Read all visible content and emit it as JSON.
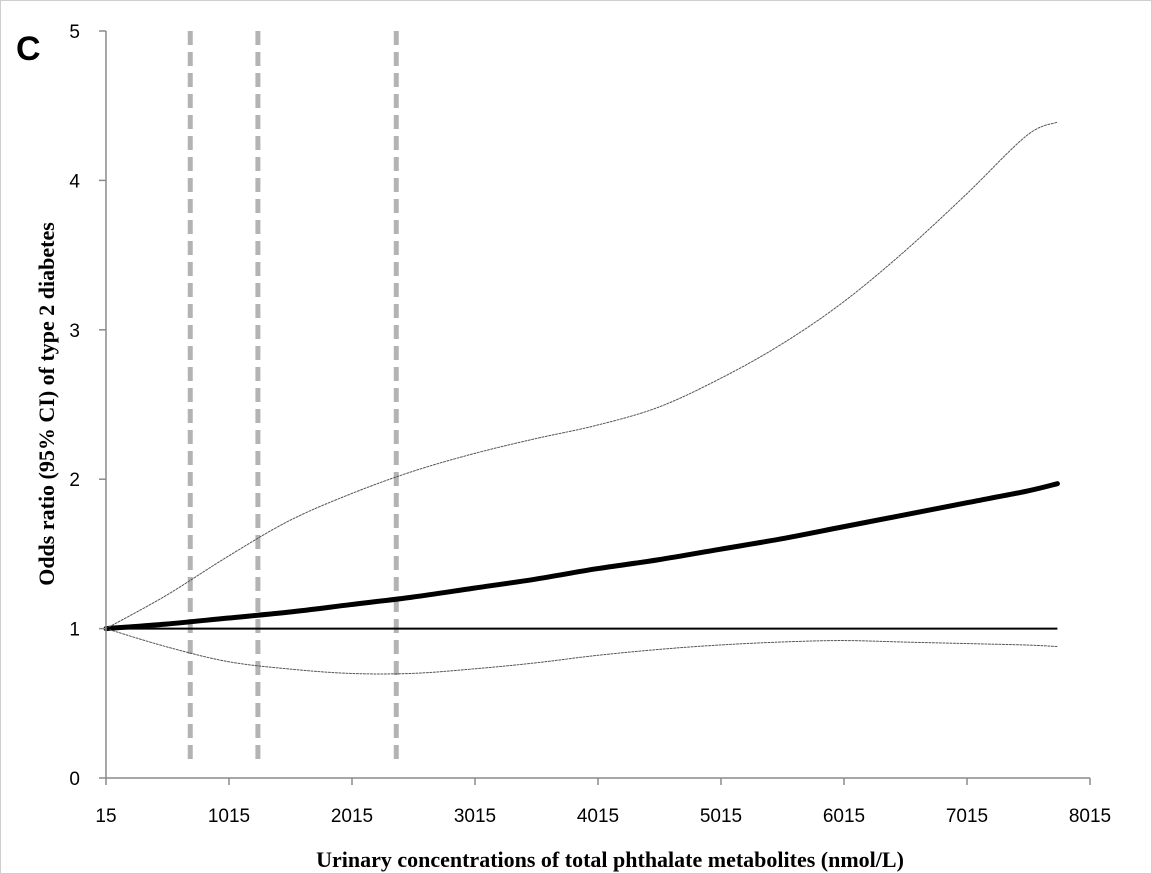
{
  "chart_data": {
    "type": "line",
    "panel_label": "C",
    "title": "",
    "xlabel": "Urinary concentrations of total phthalate metabolites (nmol/L)",
    "ylabel": "Odds ratio (95% CI) of type 2 diabetes",
    "xlim": [
      15,
      8015
    ],
    "ylim": [
      0,
      5
    ],
    "x_ticks": [
      15,
      1015,
      2015,
      3015,
      4015,
      5015,
      6015,
      7015,
      8015
    ],
    "y_ticks": [
      0,
      1,
      2,
      3,
      4,
      5
    ],
    "grid": false,
    "legend": "none",
    "reference_line": {
      "y": 1,
      "color": "#000000"
    },
    "vertical_markers": {
      "x": [
        700,
        1250,
        2375
      ],
      "color": "#b3b3b3",
      "style": "dashed"
    },
    "series": [
      {
        "role": "estimate",
        "color": "#000000",
        "x": [
          15,
          500,
          1000,
          1500,
          2000,
          2500,
          3000,
          3500,
          4000,
          4500,
          5000,
          5500,
          6000,
          6500,
          7000,
          7500,
          7750
        ],
        "y": [
          1.0,
          1.03,
          1.07,
          1.11,
          1.16,
          1.21,
          1.27,
          1.33,
          1.4,
          1.46,
          1.53,
          1.6,
          1.68,
          1.76,
          1.84,
          1.92,
          1.97
        ]
      },
      {
        "role": "upper-ci",
        "color": "#555555",
        "x": [
          15,
          500,
          1000,
          1500,
          2000,
          2500,
          3000,
          3500,
          4000,
          4500,
          5000,
          5500,
          6000,
          6500,
          7000,
          7500,
          7750
        ],
        "y": [
          1.0,
          1.22,
          1.48,
          1.72,
          1.9,
          2.05,
          2.17,
          2.27,
          2.36,
          2.48,
          2.67,
          2.9,
          3.18,
          3.52,
          3.9,
          4.3,
          4.39
        ]
      },
      {
        "role": "lower-ci",
        "color": "#555555",
        "x": [
          15,
          500,
          1000,
          1500,
          2000,
          2500,
          3000,
          3500,
          4000,
          4500,
          5000,
          5500,
          6000,
          6500,
          7000,
          7500,
          7750
        ],
        "y": [
          1.0,
          0.88,
          0.78,
          0.73,
          0.7,
          0.7,
          0.73,
          0.77,
          0.82,
          0.86,
          0.89,
          0.91,
          0.92,
          0.91,
          0.9,
          0.89,
          0.88
        ]
      }
    ]
  }
}
